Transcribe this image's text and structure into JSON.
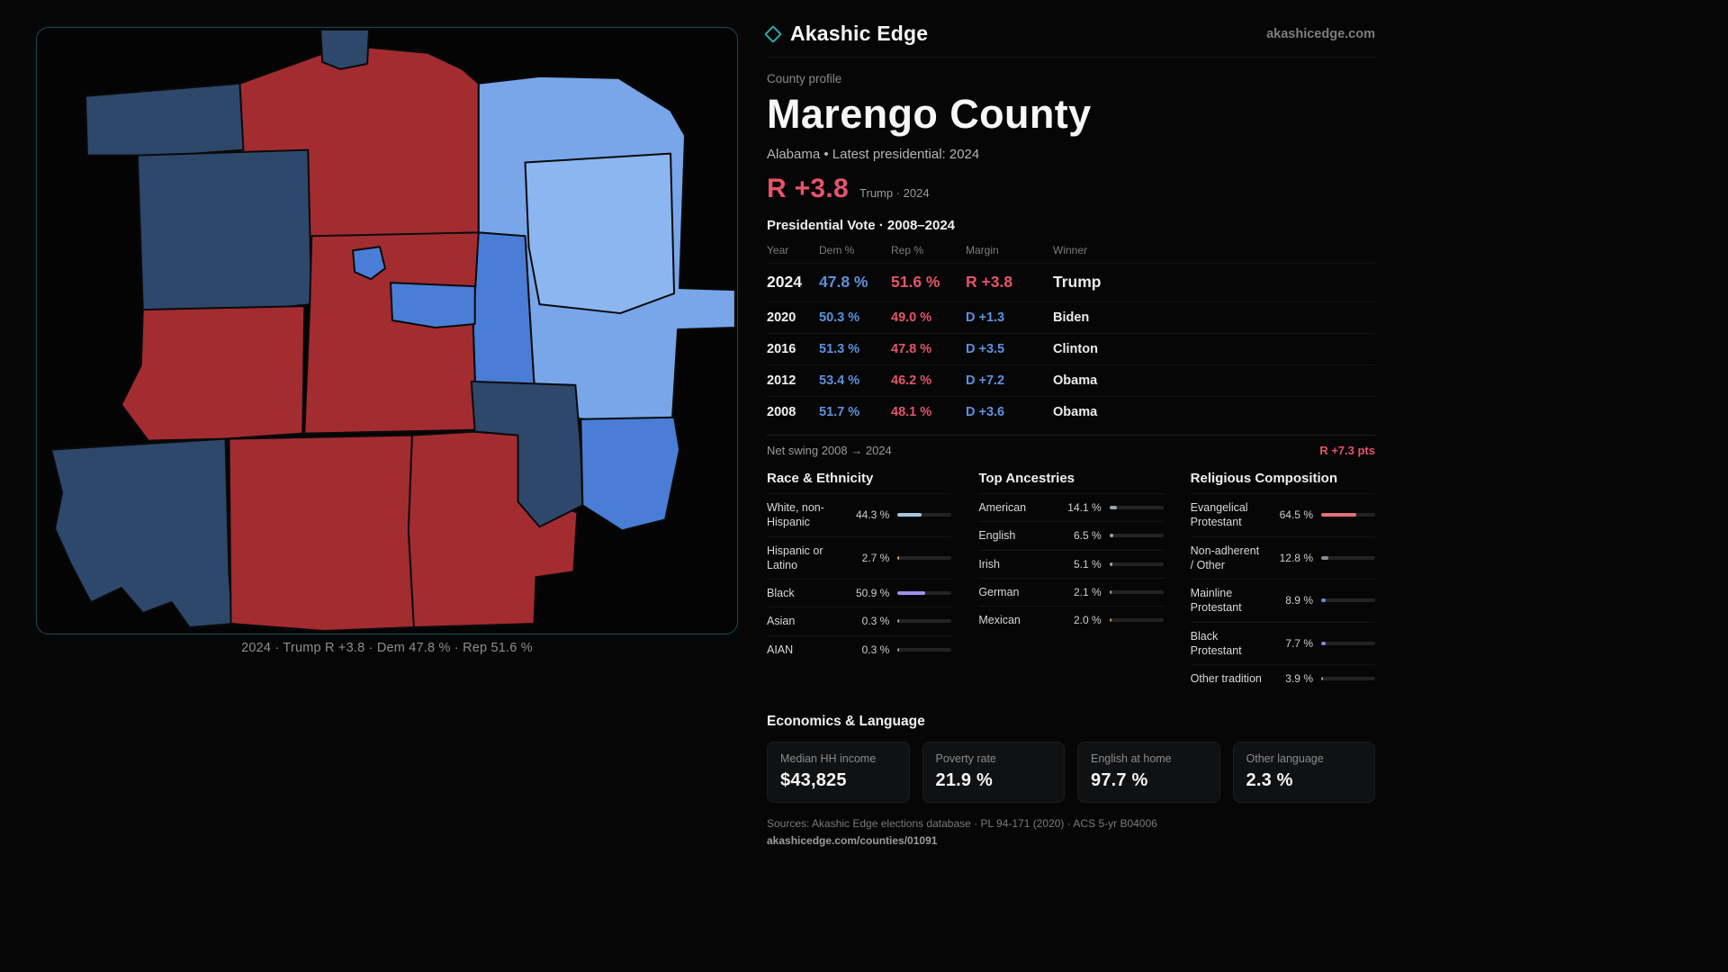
{
  "colors": {
    "accent_rep": "#e5546a",
    "accent_dem": "#5e91de",
    "brand_teal": "#2fa8ad",
    "page_bg": "#060607"
  },
  "map": {
    "caption": "2024 · Trump R +3.8 · Dem 47.8 % · Rep 51.6 %",
    "palette": {
      "rep": "#a32c31",
      "navy": "#2e486b",
      "mid": "#4a7ed6",
      "light": "#78a6e9",
      "lighter": "#8cb6f0"
    }
  },
  "header": {
    "brand": "Akashic Edge",
    "domain": "akashicedge.com"
  },
  "profile": {
    "eyebrow": "County profile",
    "title": "Marengo County",
    "subtitle": "Alabama • Latest presidential: 2024",
    "margin_big": "R +3.8",
    "margin_context": "Trump · 2024"
  },
  "vote_table": {
    "title": "Presidential Vote · 2008–2024",
    "columns": [
      "Year",
      "Dem %",
      "Rep %",
      "Margin",
      "Winner"
    ],
    "rows": [
      {
        "year": "2024",
        "dem": "47.8 %",
        "rep": "51.6 %",
        "margin": "R +3.8",
        "winner": "Trump"
      },
      {
        "year": "2020",
        "dem": "50.3 %",
        "rep": "49.0 %",
        "margin": "D +1.3",
        "winner": "Biden"
      },
      {
        "year": "2016",
        "dem": "51.3 %",
        "rep": "47.8 %",
        "margin": "D +3.5",
        "winner": "Clinton"
      },
      {
        "year": "2012",
        "dem": "53.4 %",
        "rep": "46.2 %",
        "margin": "D +7.2",
        "winner": "Obama"
      },
      {
        "year": "2008",
        "dem": "51.7 %",
        "rep": "48.1 %",
        "margin": "D +3.6",
        "winner": "Obama"
      }
    ],
    "net_swing_label": "Net swing 2008 → 2024",
    "net_swing_value": "R +7.3 pts"
  },
  "demographics": [
    {
      "title": "Race & Ethnicity",
      "items": [
        {
          "label": "White, non-Hispanic",
          "value": "44.3 %",
          "pct": 44.3,
          "color": "#a9c6dd"
        },
        {
          "label": "Hispanic or Latino",
          "value": "2.7 %",
          "pct": 2.7,
          "color": "#e0a04c"
        },
        {
          "label": "Black",
          "value": "50.9 %",
          "pct": 50.9,
          "color": "#a18ef0"
        },
        {
          "label": "Asian",
          "value": "0.3 %",
          "pct": 0.3,
          "color": "#9a9a9a"
        },
        {
          "label": "AIAN",
          "value": "0.3 %",
          "pct": 0.3,
          "color": "#9a9a9a"
        }
      ]
    },
    {
      "title": "Top Ancestries",
      "items": [
        {
          "label": "American",
          "value": "14.1 %",
          "pct": 14.1,
          "color": "#9ba3ab"
        },
        {
          "label": "English",
          "value": "6.5 %",
          "pct": 6.5,
          "color": "#9ba3ab"
        },
        {
          "label": "Irish",
          "value": "5.1 %",
          "pct": 5.1,
          "color": "#9ba3ab"
        },
        {
          "label": "German",
          "value": "2.1 %",
          "pct": 2.1,
          "color": "#9ba3ab"
        },
        {
          "label": "Mexican",
          "value": "2.0 %",
          "pct": 2.0,
          "color": "#c9913f"
        }
      ]
    },
    {
      "title": "Religious Composition",
      "items": [
        {
          "label": "Evangelical Protestant",
          "value": "64.5 %",
          "pct": 64.5,
          "color": "#e0707b"
        },
        {
          "label": "Non-adherent / Other",
          "value": "12.8 %",
          "pct": 12.8,
          "color": "#8a8f96"
        },
        {
          "label": "Mainline Protestant",
          "value": "8.9 %",
          "pct": 8.9,
          "color": "#5e91de"
        },
        {
          "label": "Black Protestant",
          "value": "7.7 %",
          "pct": 7.7,
          "color": "#8f7fe8"
        },
        {
          "label": "Other tradition",
          "value": "3.9 %",
          "pct": 3.9,
          "color": "#9a9a9a"
        }
      ]
    }
  ],
  "economics": {
    "title": "Economics & Language",
    "stats": [
      {
        "label": "Median HH income",
        "value": "$43,825"
      },
      {
        "label": "Poverty rate",
        "value": "21.9 %"
      },
      {
        "label": "English at home",
        "value": "97.7 %"
      },
      {
        "label": "Other language",
        "value": "2.3 %"
      }
    ]
  },
  "footer": {
    "sources": "Sources: Akashic Edge elections database · PL 94-171 (2020) · ACS 5-yr B04006",
    "permalink": "akashicedge.com/counties/01091"
  }
}
